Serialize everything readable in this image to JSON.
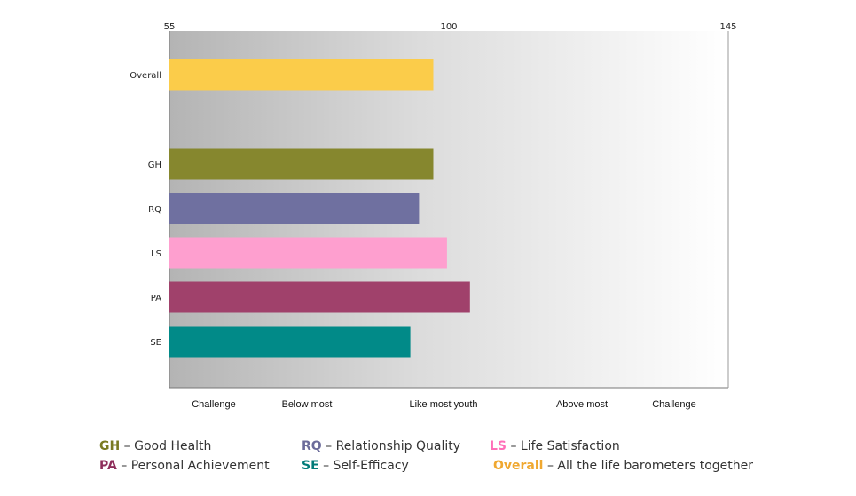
{
  "chart_data": {
    "type": "bar",
    "orientation": "horizontal",
    "x_ticks": [
      55,
      100,
      145
    ],
    "xlim": [
      55,
      145
    ],
    "zone_labels": [
      "Challenge",
      "Below most",
      "Like most youth",
      "Above most",
      "Challenge"
    ],
    "categories": [
      "Overall",
      "GH",
      "RQ",
      "LS",
      "PA",
      "SE"
    ],
    "values": [
      97.5,
      97.5,
      95.2,
      99.7,
      103.4,
      93.8
    ],
    "colors": [
      "#FBCC4A",
      "#86872E",
      "#6F70A0",
      "#FE9FCF",
      "#A0416B",
      "#018A88"
    ],
    "background": "gradient from #b4b4b4 (left) to #ffffff (right)",
    "grid": false
  },
  "legend": [
    {
      "code": "GH",
      "text": "– Good Health",
      "color": "#7A7A22"
    },
    {
      "code": "RQ",
      "text": "– Relationship Quality",
      "color": "#6B6B9A"
    },
    {
      "code": "LS",
      "text": "– Life Satisfaction",
      "color": "#FF6EB8"
    },
    {
      "code": "PA",
      "text": "– Personal Achievement",
      "color": "#8E2D5A"
    },
    {
      "code": "SE",
      "text": "– Self-Efficacy",
      "color": "#007B78"
    },
    {
      "code": "Overall",
      "text": "– All the life barometers together",
      "color": "#F0A830"
    }
  ]
}
